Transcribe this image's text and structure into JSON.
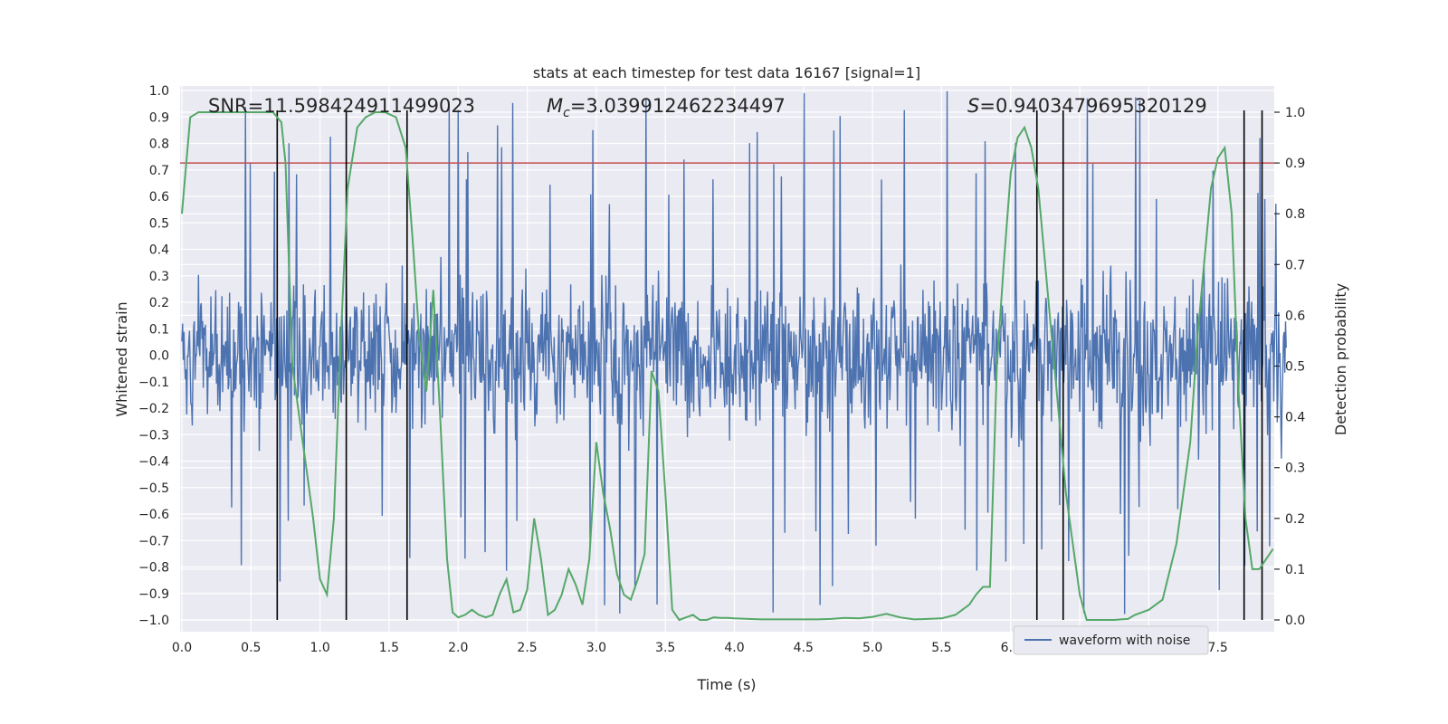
{
  "chart_data": {
    "type": "line",
    "title": "stats at each timestep for test data 16167 [signal=1]",
    "xlabel": "Time (s)",
    "ylabel_left": "Whitened strain",
    "ylabel_right": "Detection probability",
    "xlim": [
      0,
      8
    ],
    "ylim_left": [
      -1.09,
      1.02
    ],
    "ylim_right": [
      -0.05,
      1.045
    ],
    "x_ticks": [
      0.0,
      0.5,
      1.0,
      1.5,
      2.0,
      2.5,
      3.0,
      3.5,
      4.0,
      4.5,
      5.0,
      5.5,
      6.0,
      6.5,
      7.0,
      7.5
    ],
    "x_tick_labels": [
      "0.0",
      "0.5",
      "1.0",
      "1.5",
      "2.0",
      "2.5",
      "3.0",
      "3.5",
      "4.0",
      "4.5",
      "5.0",
      "5.5",
      "6.0",
      "6.5",
      "7.0",
      "7.5"
    ],
    "y_left_ticks": [
      1.0,
      0.9,
      0.8,
      0.7,
      0.6,
      0.5,
      0.4,
      0.3,
      0.2,
      0.1,
      0.0,
      -0.1,
      -0.2,
      -0.3,
      -0.4,
      -0.5,
      -0.6,
      -0.7,
      -0.8,
      -0.9,
      -1.0
    ],
    "y_left_tick_labels": [
      "1.0",
      "0.9",
      "0.8",
      "0.7",
      "0.6",
      "0.5",
      "0.4",
      "0.3",
      "0.2",
      "0.1",
      "0.0",
      "−0.1",
      "−0.2",
      "−0.3",
      "−0.4",
      "−0.5",
      "−0.6",
      "−0.7",
      "−0.8",
      "−0.9",
      "−1.0"
    ],
    "y_right_ticks": [
      1.0,
      0.9,
      0.8,
      0.7,
      0.6,
      0.5,
      0.4,
      0.3,
      0.2,
      0.1,
      0.0
    ],
    "y_right_tick_labels": [
      "1.0",
      "0.9",
      "0.8",
      "0.7",
      "0.6",
      "0.5",
      "0.4",
      "0.3",
      "0.2",
      "0.1",
      "0.0"
    ],
    "grid": true,
    "legend": {
      "position": "bottom-right",
      "entries": [
        "waveform with noise"
      ]
    },
    "annotations": {
      "snr": "SNR=11.598424911499023",
      "mc_symbol": "M",
      "mc_subscript": "c",
      "mc_value": "=3.039912462234497",
      "s_symbol": "S",
      "s_value": "=0.9403479695320129"
    },
    "threshold": 0.9,
    "event_lines_x": [
      0.69,
      1.19,
      1.63,
      6.19,
      6.38,
      7.69,
      7.82
    ],
    "waveform": {
      "name": "waveform with noise",
      "color": "#4c72b0",
      "t_start": 0.0,
      "t_end": 8.0,
      "n_samples": 1600,
      "typical_amplitude": 0.42,
      "max_amplitude": 1.0
    },
    "probability": {
      "name": "detection probability",
      "color": "#55a868",
      "x": [
        0.0,
        0.06,
        0.12,
        0.2,
        0.3,
        0.4,
        0.5,
        0.6,
        0.66,
        0.72,
        0.75,
        0.8,
        0.85,
        0.9,
        0.95,
        1.0,
        1.05,
        1.1,
        1.15,
        1.2,
        1.27,
        1.33,
        1.4,
        1.47,
        1.55,
        1.62,
        1.67,
        1.72,
        1.77,
        1.82,
        1.87,
        1.92,
        1.96,
        2.0,
        2.05,
        2.1,
        2.15,
        2.2,
        2.25,
        2.3,
        2.35,
        2.4,
        2.45,
        2.5,
        2.55,
        2.6,
        2.65,
        2.7,
        2.75,
        2.8,
        2.85,
        2.9,
        2.95,
        3.0,
        3.05,
        3.1,
        3.15,
        3.2,
        3.25,
        3.3,
        3.35,
        3.4,
        3.45,
        3.5,
        3.55,
        3.6,
        3.65,
        3.7,
        3.75,
        3.8,
        3.85,
        3.9,
        3.95,
        4.0,
        4.1,
        4.2,
        4.3,
        4.4,
        4.5,
        4.6,
        4.7,
        4.8,
        4.9,
        5.0,
        5.1,
        5.2,
        5.3,
        5.4,
        5.5,
        5.6,
        5.7,
        5.75,
        5.8,
        5.85,
        5.9,
        5.95,
        6.0,
        6.05,
        6.1,
        6.15,
        6.2,
        6.25,
        6.3,
        6.35,
        6.4,
        6.45,
        6.5,
        6.55,
        6.6,
        6.65,
        6.7,
        6.75,
        6.8,
        6.85,
        6.9,
        7.0,
        7.1,
        7.2,
        7.3,
        7.35,
        7.4,
        7.45,
        7.5,
        7.55,
        7.6,
        7.65,
        7.7,
        7.75,
        7.8,
        7.85,
        7.9
      ],
      "y": [
        0.8,
        0.99,
        1.0,
        1.0,
        1.0,
        1.0,
        1.0,
        1.0,
        1.0,
        0.98,
        0.9,
        0.5,
        0.4,
        0.3,
        0.2,
        0.08,
        0.05,
        0.2,
        0.55,
        0.85,
        0.97,
        0.99,
        1.0,
        1.0,
        0.99,
        0.93,
        0.75,
        0.55,
        0.45,
        0.65,
        0.4,
        0.12,
        0.015,
        0.005,
        0.01,
        0.02,
        0.01,
        0.005,
        0.01,
        0.05,
        0.08,
        0.015,
        0.02,
        0.06,
        0.2,
        0.12,
        0.01,
        0.02,
        0.05,
        0.1,
        0.07,
        0.03,
        0.12,
        0.35,
        0.25,
        0.18,
        0.09,
        0.05,
        0.04,
        0.08,
        0.13,
        0.49,
        0.45,
        0.25,
        0.02,
        0.0,
        0.005,
        0.01,
        0.0,
        0.0,
        0.005,
        0.004,
        0.004,
        0.003,
        0.002,
        0.001,
        0.001,
        0.001,
        0.001,
        0.001,
        0.002,
        0.004,
        0.003,
        0.006,
        0.012,
        0.005,
        0.001,
        0.002,
        0.003,
        0.01,
        0.03,
        0.05,
        0.065,
        0.065,
        0.5,
        0.7,
        0.88,
        0.95,
        0.97,
        0.93,
        0.85,
        0.7,
        0.55,
        0.4,
        0.25,
        0.15,
        0.05,
        0.0,
        0.0,
        0.0,
        0.0,
        0.0,
        0.001,
        0.002,
        0.01,
        0.02,
        0.04,
        0.15,
        0.35,
        0.55,
        0.7,
        0.85,
        0.91,
        0.93,
        0.8,
        0.45,
        0.2,
        0.1,
        0.1,
        0.12,
        0.14
      ]
    }
  }
}
